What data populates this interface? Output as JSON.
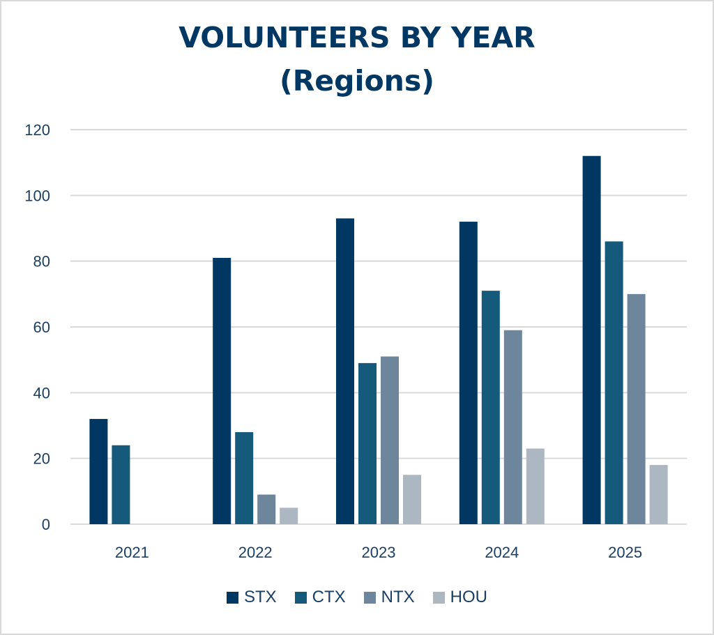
{
  "chart_data": {
    "type": "bar",
    "title": "VOLUNTEERS BY YEAR",
    "subtitle": "(Regions)",
    "xlabel": "",
    "ylabel": "",
    "categories": [
      "2021",
      "2022",
      "2023",
      "2024",
      "2025"
    ],
    "series": [
      {
        "name": "STX",
        "color": "#003863",
        "values": [
          32,
          81,
          93,
          92,
          112
        ]
      },
      {
        "name": "CTX",
        "color": "#155a7a",
        "values": [
          24,
          28,
          49,
          71,
          86
        ]
      },
      {
        "name": "NTX",
        "color": "#6d869c",
        "values": [
          null,
          9,
          51,
          59,
          70
        ]
      },
      {
        "name": "HOU",
        "color": "#adb7c2",
        "values": [
          null,
          5,
          15,
          23,
          18
        ]
      }
    ],
    "ylim": [
      0,
      120
    ],
    "yticks": [
      "0",
      "20",
      "40",
      "60",
      "80",
      "100",
      "120"
    ],
    "grid": true,
    "legend_position": "bottom"
  }
}
